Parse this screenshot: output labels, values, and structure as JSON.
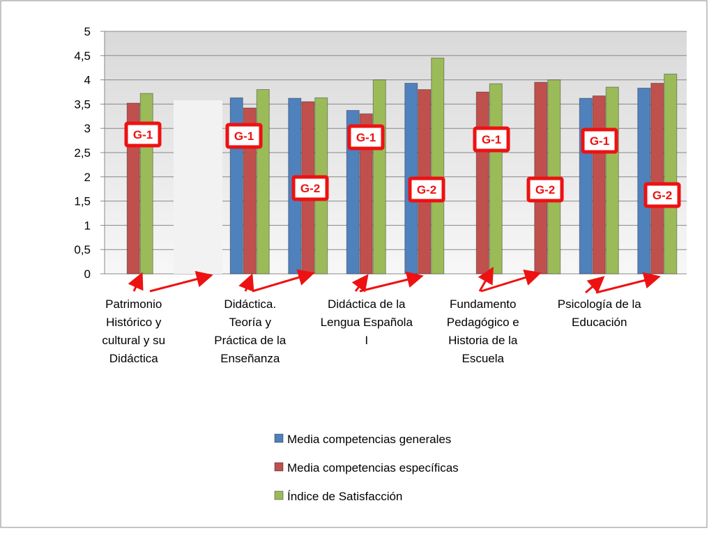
{
  "chart_data": {
    "type": "bar",
    "categories": [
      "Patrimonio Histórico y cultural y su Didáctica",
      null,
      "Didáctica. Teoría y Práctica de la Enseñanza",
      null,
      "Didáctica de la Lengua Española I",
      null,
      "Fundamento Pedagógico e Historia de la Escuela",
      null,
      "Psicología de la Educación",
      null
    ],
    "series": [
      {
        "name": "Media competencias generales",
        "color": "#4f81bd",
        "values": [
          null,
          null,
          3.63,
          3.62,
          3.37,
          3.93,
          null,
          null,
          3.62,
          3.83
        ]
      },
      {
        "name": "Media competencias específicas",
        "color": "#c0504d",
        "values": [
          3.52,
          null,
          3.42,
          3.55,
          3.3,
          3.8,
          3.75,
          3.95,
          3.67,
          3.93
        ]
      },
      {
        "name": "Índice de Satisfacción",
        "color": "#9bbb59",
        "values": [
          3.72,
          null,
          3.8,
          3.63,
          4.0,
          4.45,
          3.92,
          4.0,
          3.85,
          4.12
        ]
      }
    ],
    "ylim": [
      0,
      5
    ],
    "yticks": [
      0,
      {
        "value": 0.5,
        "label": "0,5"
      },
      1,
      {
        "value": 1.5,
        "label": "1,5"
      },
      2,
      {
        "value": 2.5,
        "label": "2,5"
      },
      3,
      {
        "value": 3.5,
        "label": "3,5"
      },
      4,
      {
        "value": 4.5,
        "label": "4,5"
      },
      5
    ],
    "grid": true,
    "legend": "bottom",
    "annotations": [
      "G-1",
      "G-1",
      "G-2",
      "G-1",
      "G-2",
      "G-1",
      "G-2",
      "G-1",
      "G-2"
    ]
  }
}
